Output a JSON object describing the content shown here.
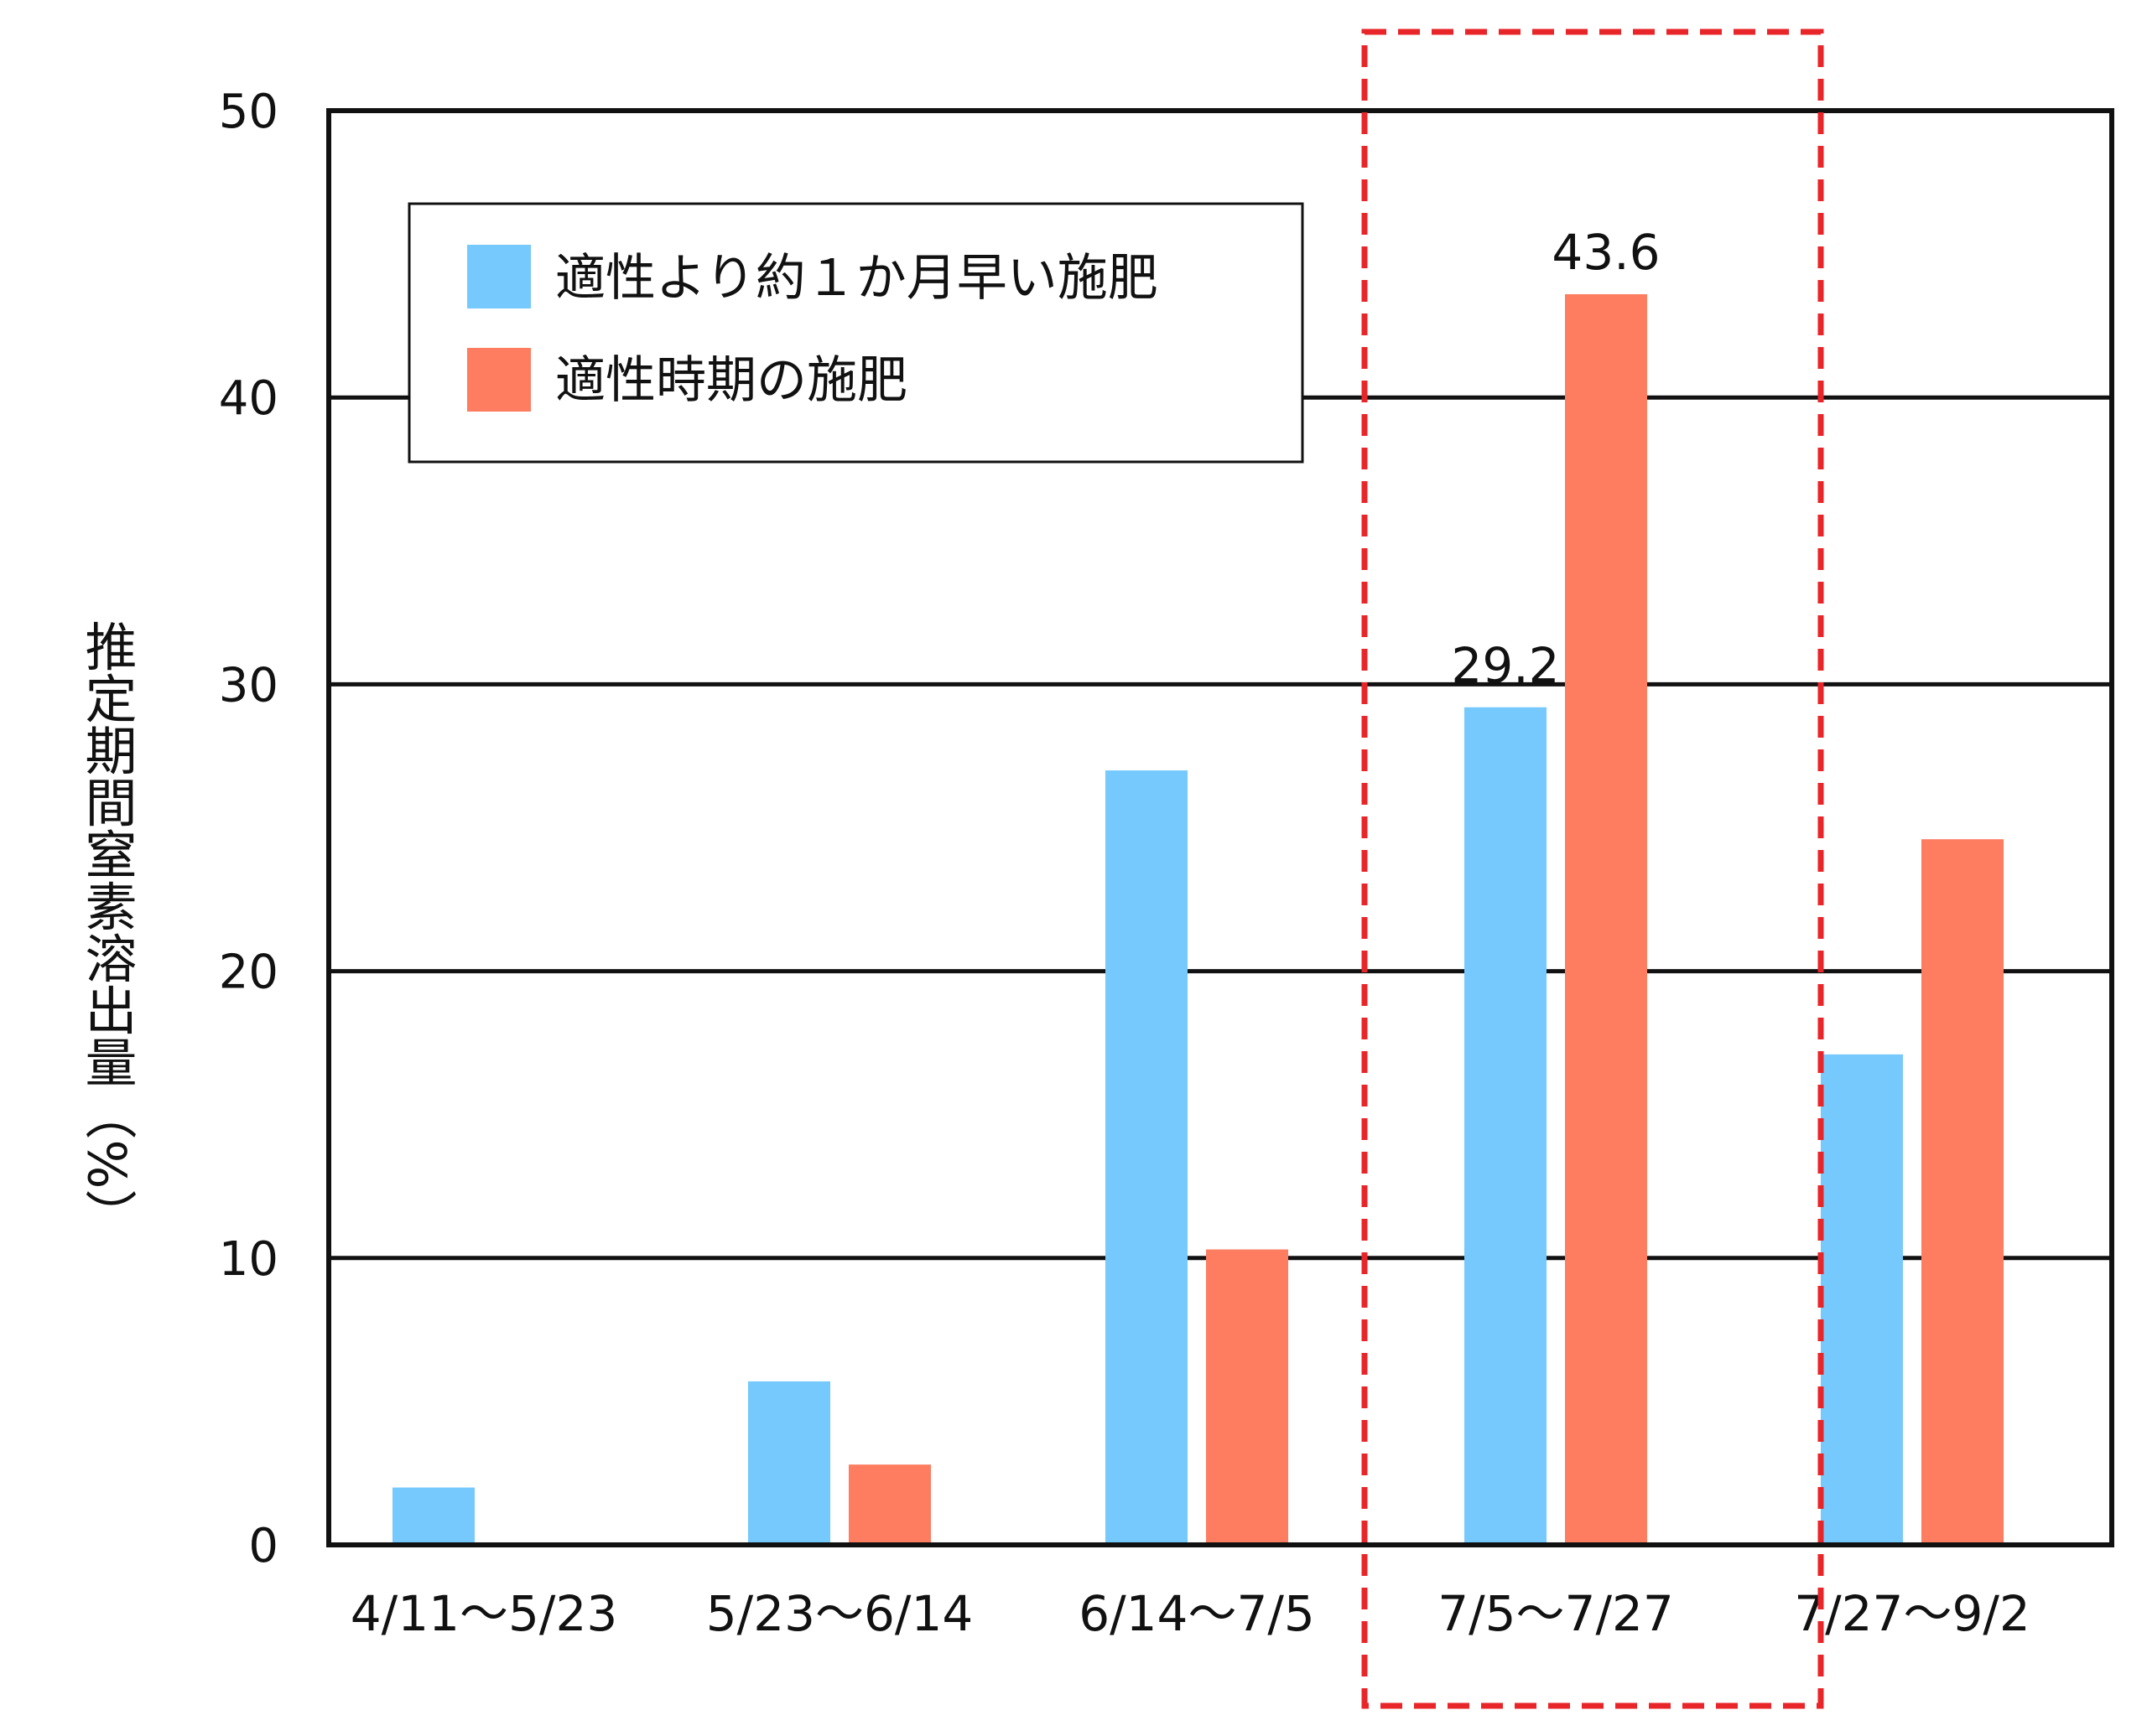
{
  "chart_data": {
    "type": "bar",
    "categories": [
      "4/11～5/23",
      "5/23～6/14",
      "6/14～7/5",
      "7/5～7/27",
      "7/27～9/2"
    ],
    "series": [
      {
        "name": "適性より約１か月早い施肥",
        "values": [
          2.0,
          5.7,
          27.0,
          29.2,
          17.1
        ],
        "color": "#76c9fd"
      },
      {
        "name": "適性時期の施肥",
        "values": [
          0,
          2.8,
          10.3,
          43.6,
          24.6
        ],
        "color": "#fe7c60"
      }
    ],
    "data_labels": {
      "3": [
        "29.2",
        "43.6"
      ]
    },
    "ylabel": "推定期間窒素溶出量（%）",
    "ylim": [
      0,
      50
    ],
    "yticks": [
      0,
      10,
      20,
      30,
      40,
      50
    ],
    "grid": true,
    "legend_position": "top-left",
    "highlight": {
      "category_index": 3,
      "style": "dashed",
      "color": "#e8262a"
    }
  }
}
